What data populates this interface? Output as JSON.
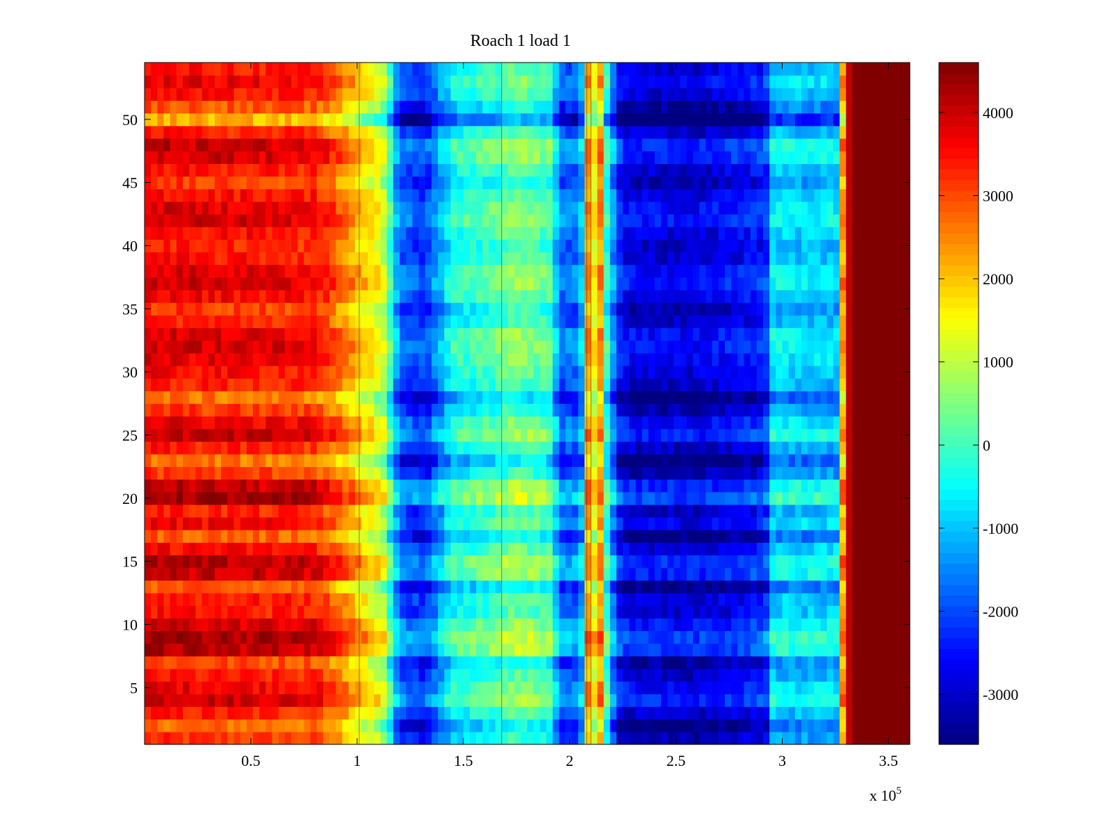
{
  "chart_data": {
    "type": "heatmap",
    "title": "Roach 1 load 1",
    "xlabel": "",
    "ylabel": "",
    "x_multiplier_label": "x 10",
    "x_multiplier_exponent": "5",
    "xlim": [
      0.0,
      3.6
    ],
    "ylim": [
      0.5,
      54.5
    ],
    "x_ticks": [
      0.5,
      1,
      1.5,
      2,
      2.5,
      3,
      3.5
    ],
    "x_tick_labels": [
      "0.5",
      "1",
      "1.5",
      "2",
      "2.5",
      "3",
      "3.5"
    ],
    "y_ticks": [
      5,
      10,
      15,
      20,
      25,
      30,
      35,
      40,
      45,
      50
    ],
    "y_tick_labels": [
      "5",
      "10",
      "15",
      "20",
      "25",
      "30",
      "35",
      "40",
      "45",
      "50"
    ],
    "colormap": "jet",
    "clim": [
      -3600,
      4600
    ],
    "colorbar_ticks": [
      -3000,
      -2000,
      -1000,
      0,
      1000,
      2000,
      3000,
      4000
    ],
    "colorbar_tick_labels": [
      "-3000",
      "-2000",
      "-1000",
      "0",
      "1000",
      "2000",
      "3000",
      "4000"
    ],
    "rows": 54,
    "column_profile": {
      "x": [
        0.0,
        0.8,
        0.93,
        1.02,
        1.12,
        1.2,
        1.32,
        1.45,
        1.6,
        1.75,
        1.92,
        1.95,
        2.05,
        2.09,
        2.11,
        2.14,
        2.18,
        2.24,
        2.3,
        2.6,
        2.92,
        2.95,
        3.1,
        3.26,
        3.3,
        3.34,
        3.6
      ],
      "values": [
        3200,
        3000,
        2200,
        1500,
        800,
        -2200,
        -2600,
        -800,
        -500,
        0,
        -400,
        -2200,
        -2100,
        2500,
        800,
        2400,
        -1000,
        -3000,
        -3200,
        -3300,
        -2800,
        -1200,
        -1300,
        -1300,
        3800,
        4600,
        4600
      ]
    },
    "row_offsets": [
      0,
      -400,
      200,
      900,
      600,
      200,
      -100,
      1000,
      1200,
      800,
      300,
      300,
      -300,
      900,
      1000,
      400,
      -300,
      500,
      200,
      1200,
      900,
      0,
      -500,
      200,
      900,
      600,
      0,
      -500,
      200,
      400,
      600,
      800,
      700,
      200,
      0,
      500,
      800,
      700,
      300,
      200,
      400,
      800,
      700,
      400,
      0,
      300,
      800,
      900,
      200,
      -1000,
      -200,
      300,
      600,
      300
    ],
    "vertical_lines_x": [
      1.01,
      1.68,
      2.08,
      2.1
    ]
  }
}
